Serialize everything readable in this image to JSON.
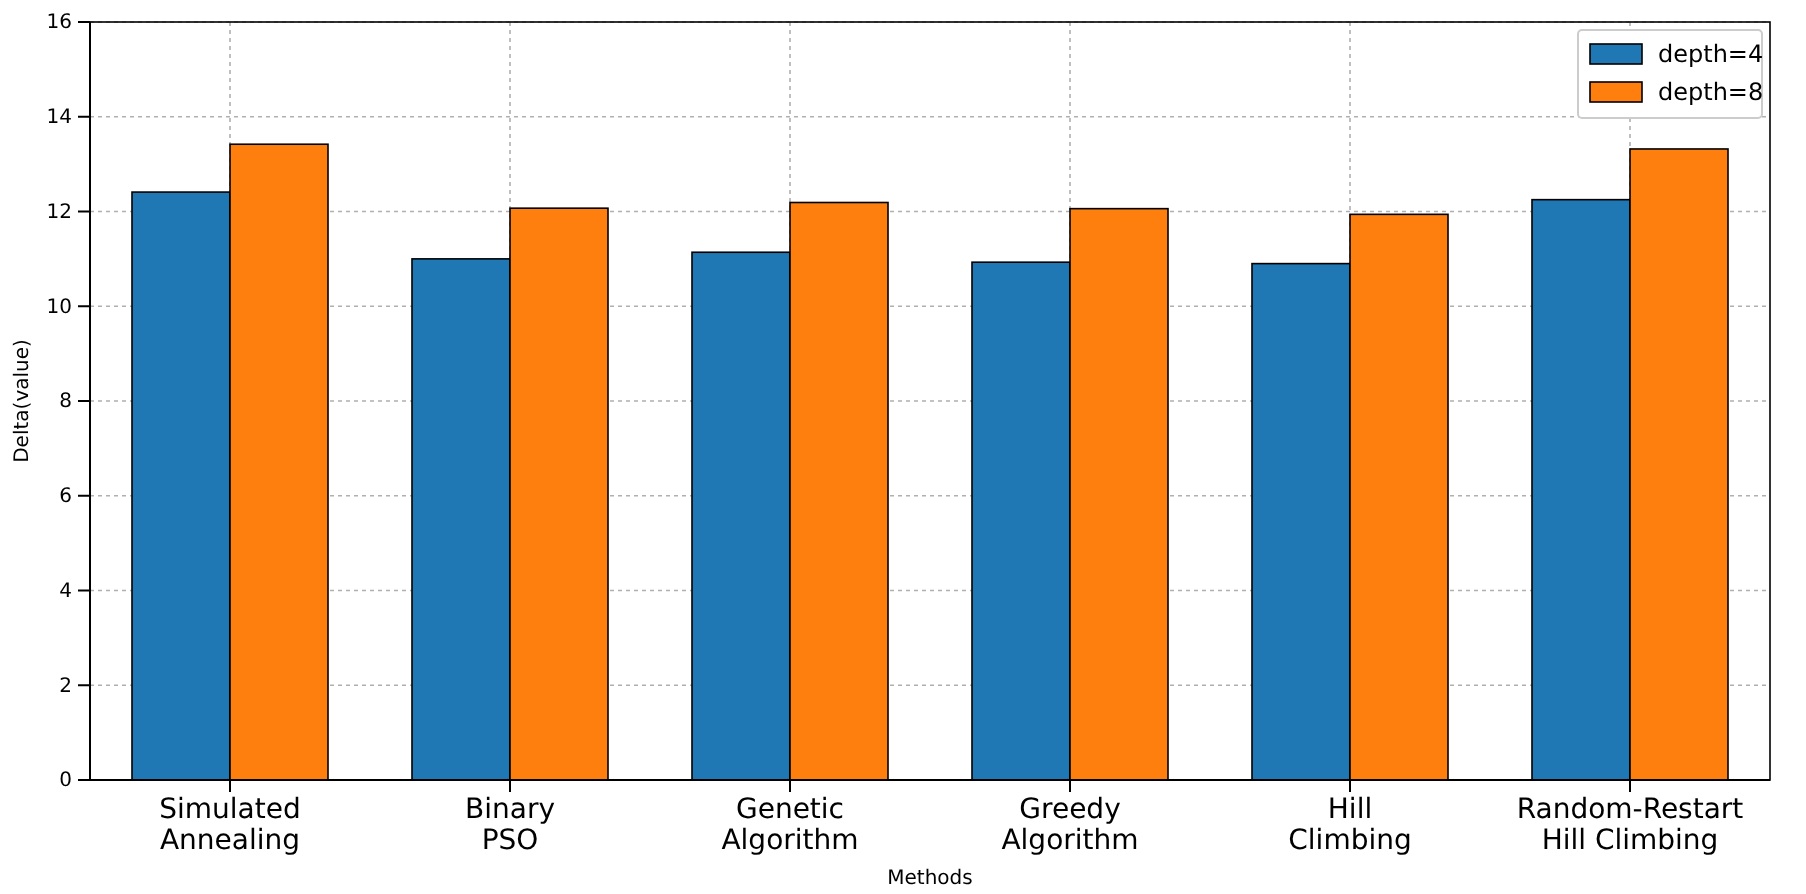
{
  "chart_data": {
    "type": "bar",
    "xlabel": "Methods",
    "ylabel": "Delta(value)",
    "categories": [
      "Simulated\nAnnealing",
      "Binary\nPSO",
      "Genetic\nAlgorithm",
      "Greedy\nAlgorithm",
      "Hill\nClimbing",
      "Random-Restart\nHill Climbing"
    ],
    "series": [
      {
        "name": "depth=4",
        "color": "#1f77b4",
        "values": [
          12.41,
          11.0,
          11.14,
          10.93,
          10.9,
          12.25
        ]
      },
      {
        "name": "depth=8",
        "color": "#ff7f0e",
        "values": [
          13.42,
          12.07,
          12.19,
          12.06,
          11.94,
          13.32
        ]
      }
    ],
    "ylim": [
      0,
      16
    ],
    "yticks": [
      0,
      2,
      4,
      6,
      8,
      10,
      12,
      14,
      16
    ],
    "grid": true,
    "legend": "top right"
  }
}
